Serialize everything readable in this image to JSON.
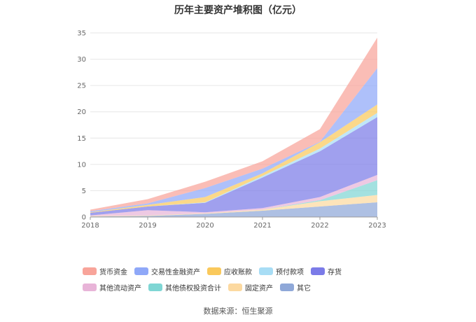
{
  "chart_data": {
    "type": "area",
    "stacked": true,
    "title": "历年主要资产堆积图（亿元）",
    "x": [
      "2018",
      "2019",
      "2020",
      "2021",
      "2022",
      "2023"
    ],
    "ylim": [
      0,
      35
    ],
    "yticks": [
      0,
      5,
      10,
      15,
      20,
      25,
      30,
      35
    ],
    "series": [
      {
        "name": "其它",
        "color": "#8fa8d8",
        "values": [
          0.1,
          0.2,
          0.6,
          1.2,
          2.0,
          2.8
        ]
      },
      {
        "name": "固定资产",
        "color": "#fcd9a0",
        "values": [
          0.1,
          0.1,
          0.1,
          0.2,
          1.0,
          1.4
        ]
      },
      {
        "name": "其他债权投资合计",
        "color": "#7fd6d4",
        "values": [
          0,
          0,
          0,
          0,
          0.2,
          2.8
        ]
      },
      {
        "name": "其他流动资产",
        "color": "#e8b4d8",
        "values": [
          0.1,
          1.0,
          0.2,
          0.3,
          0.6,
          1.0
        ]
      },
      {
        "name": "存货",
        "color": "#7b7be8",
        "values": [
          0.5,
          0.7,
          1.8,
          5.8,
          8.7,
          11.0
        ]
      },
      {
        "name": "预付款项",
        "color": "#a8ddf5",
        "values": [
          0,
          0,
          0.1,
          0.3,
          0.5,
          0.8
        ]
      },
      {
        "name": "应收账款",
        "color": "#fac95c",
        "values": [
          0.1,
          0.3,
          1.0,
          0.5,
          1.2,
          1.6
        ]
      },
      {
        "name": "交易性金融资产",
        "color": "#8fa8f8",
        "values": [
          0.2,
          0.3,
          1.7,
          0.9,
          0.1,
          6.9
        ]
      },
      {
        "name": "货币资金",
        "color": "#f8a49a",
        "values": [
          0.3,
          0.8,
          1.2,
          1.4,
          2.4,
          5.8
        ]
      }
    ],
    "legend_order": [
      "货币资金",
      "交易性金融资产",
      "应收账款",
      "预付款项",
      "存货",
      "其他流动资产",
      "其他债权投资合计",
      "固定资产",
      "其它"
    ],
    "legend_position": "bottom"
  },
  "source_text": "数据来源：恒生聚源"
}
